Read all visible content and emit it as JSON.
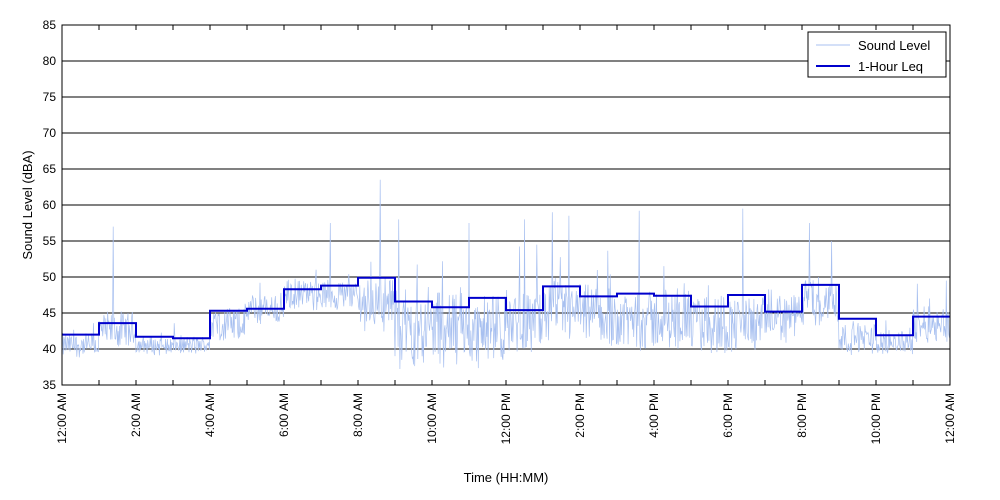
{
  "chart_data": {
    "type": "line",
    "xlabel": "Time (HH:MM)",
    "ylabel": "Sound Level (dBA)",
    "ylim": [
      35,
      85
    ],
    "yticks": [
      35,
      40,
      45,
      50,
      55,
      60,
      65,
      70,
      75,
      80,
      85
    ],
    "xlim_hours": [
      0,
      24
    ],
    "xticks": [
      {
        "hour": 0,
        "label": "12:00 AM"
      },
      {
        "hour": 2,
        "label": "2:00 AM"
      },
      {
        "hour": 4,
        "label": "4:00 AM"
      },
      {
        "hour": 6,
        "label": "6:00 AM"
      },
      {
        "hour": 8,
        "label": "8:00 AM"
      },
      {
        "hour": 10,
        "label": "10:00 AM"
      },
      {
        "hour": 12,
        "label": "12:00 PM"
      },
      {
        "hour": 14,
        "label": "2:00 PM"
      },
      {
        "hour": 16,
        "label": "4:00 PM"
      },
      {
        "hour": 18,
        "label": "6:00 PM"
      },
      {
        "hour": 20,
        "label": "8:00 PM"
      },
      {
        "hour": 22,
        "label": "10:00 PM"
      },
      {
        "hour": 24,
        "label": "12:00 AM"
      }
    ],
    "grid": "horizontal",
    "legend": "top-right",
    "series": [
      {
        "name": "Sound Level",
        "color": "#a8c0f0",
        "style": "noisy-line",
        "hourly_center": [
          40.5,
          42.5,
          40.5,
          40.5,
          43.5,
          45.5,
          47.5,
          47.5,
          46.5,
          43.0,
          43.0,
          42.5,
          44.0,
          45.0,
          44.5,
          44.0,
          44.0,
          43.5,
          43.5,
          44.5,
          46.5,
          41.5,
          41.0,
          43.5
        ],
        "hourly_spread": [
          2.0,
          3.0,
          1.5,
          1.5,
          3.0,
          2.5,
          2.5,
          2.5,
          4.5,
          6.0,
          6.5,
          5.5,
          5.0,
          5.0,
          5.0,
          5.0,
          5.0,
          5.0,
          4.5,
          4.0,
          4.0,
          2.5,
          2.0,
          3.0
        ],
        "peaks": [
          {
            "hour": 1.38,
            "value": 57.0
          },
          {
            "hour": 7.25,
            "value": 57.5
          },
          {
            "hour": 8.6,
            "value": 63.5
          },
          {
            "hour": 9.1,
            "value": 58.0
          },
          {
            "hour": 11.0,
            "value": 57.5
          },
          {
            "hour": 12.5,
            "value": 58.0
          },
          {
            "hour": 13.25,
            "value": 59.0
          },
          {
            "hour": 13.7,
            "value": 58.5
          },
          {
            "hour": 15.6,
            "value": 59.2
          },
          {
            "hour": 18.4,
            "value": 59.5
          },
          {
            "hour": 20.2,
            "value": 57.5
          },
          {
            "hour": 20.8,
            "value": 55.0
          },
          {
            "hour": 23.9,
            "value": 49.5
          }
        ]
      },
      {
        "name": "1-Hour Leq",
        "color": "#0000cc",
        "style": "step",
        "hours": [
          0,
          1,
          2,
          3,
          4,
          5,
          6,
          7,
          8,
          9,
          10,
          11,
          12,
          13,
          14,
          15,
          16,
          17,
          18,
          19,
          20,
          21,
          22,
          23
        ],
        "values": [
          42.0,
          43.6,
          41.7,
          41.5,
          45.3,
          45.6,
          48.3,
          48.8,
          49.9,
          46.6,
          45.8,
          47.1,
          45.4,
          48.7,
          47.3,
          47.7,
          47.4,
          45.9,
          47.5,
          45.2,
          48.9,
          44.2,
          41.9,
          44.5
        ]
      }
    ]
  }
}
